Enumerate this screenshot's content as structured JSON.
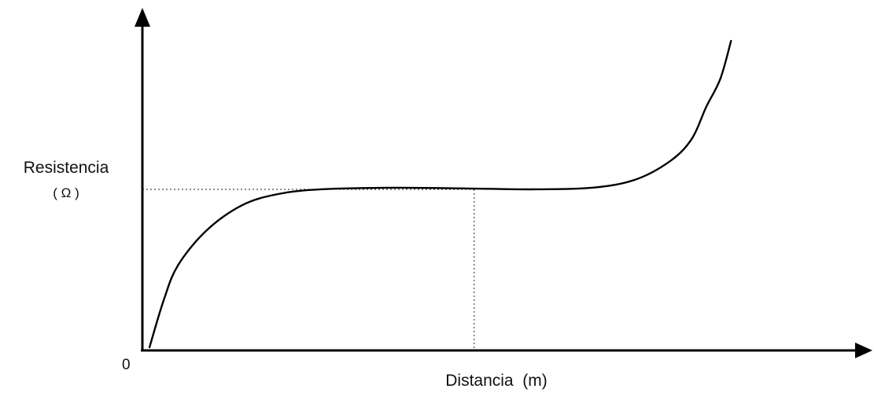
{
  "chart_data": {
    "type": "line",
    "title": "",
    "xlabel": "Distancia  (m)",
    "ylabel_line1": "Resistencia",
    "ylabel_line2": "( Ω )",
    "origin_label": "0",
    "xlim": [
      0,
      100
    ],
    "ylim": [
      0,
      100
    ],
    "grid": false,
    "legend": "none",
    "x_ticks_labeled": false,
    "y_ticks_labeled": false,
    "series": [
      {
        "points": [
          {
            "x": 1,
            "y": 1
          },
          {
            "x": 3,
            "y": 16
          },
          {
            "x": 5,
            "y": 27
          },
          {
            "x": 9,
            "y": 38
          },
          {
            "x": 14,
            "y": 46
          },
          {
            "x": 19,
            "y": 49.5
          },
          {
            "x": 25,
            "y": 51
          },
          {
            "x": 35,
            "y": 51.5
          },
          {
            "x": 45,
            "y": 51.3
          },
          {
            "x": 55,
            "y": 51
          },
          {
            "x": 63,
            "y": 51.5
          },
          {
            "x": 69,
            "y": 54
          },
          {
            "x": 74,
            "y": 60
          },
          {
            "x": 77,
            "y": 67
          },
          {
            "x": 79,
            "y": 77
          },
          {
            "x": 81,
            "y": 86
          },
          {
            "x": 82.5,
            "y": 98
          }
        ]
      }
    ],
    "reference_lines": {
      "horizontal_y": 51,
      "vertical_x": 46.5
    }
  }
}
